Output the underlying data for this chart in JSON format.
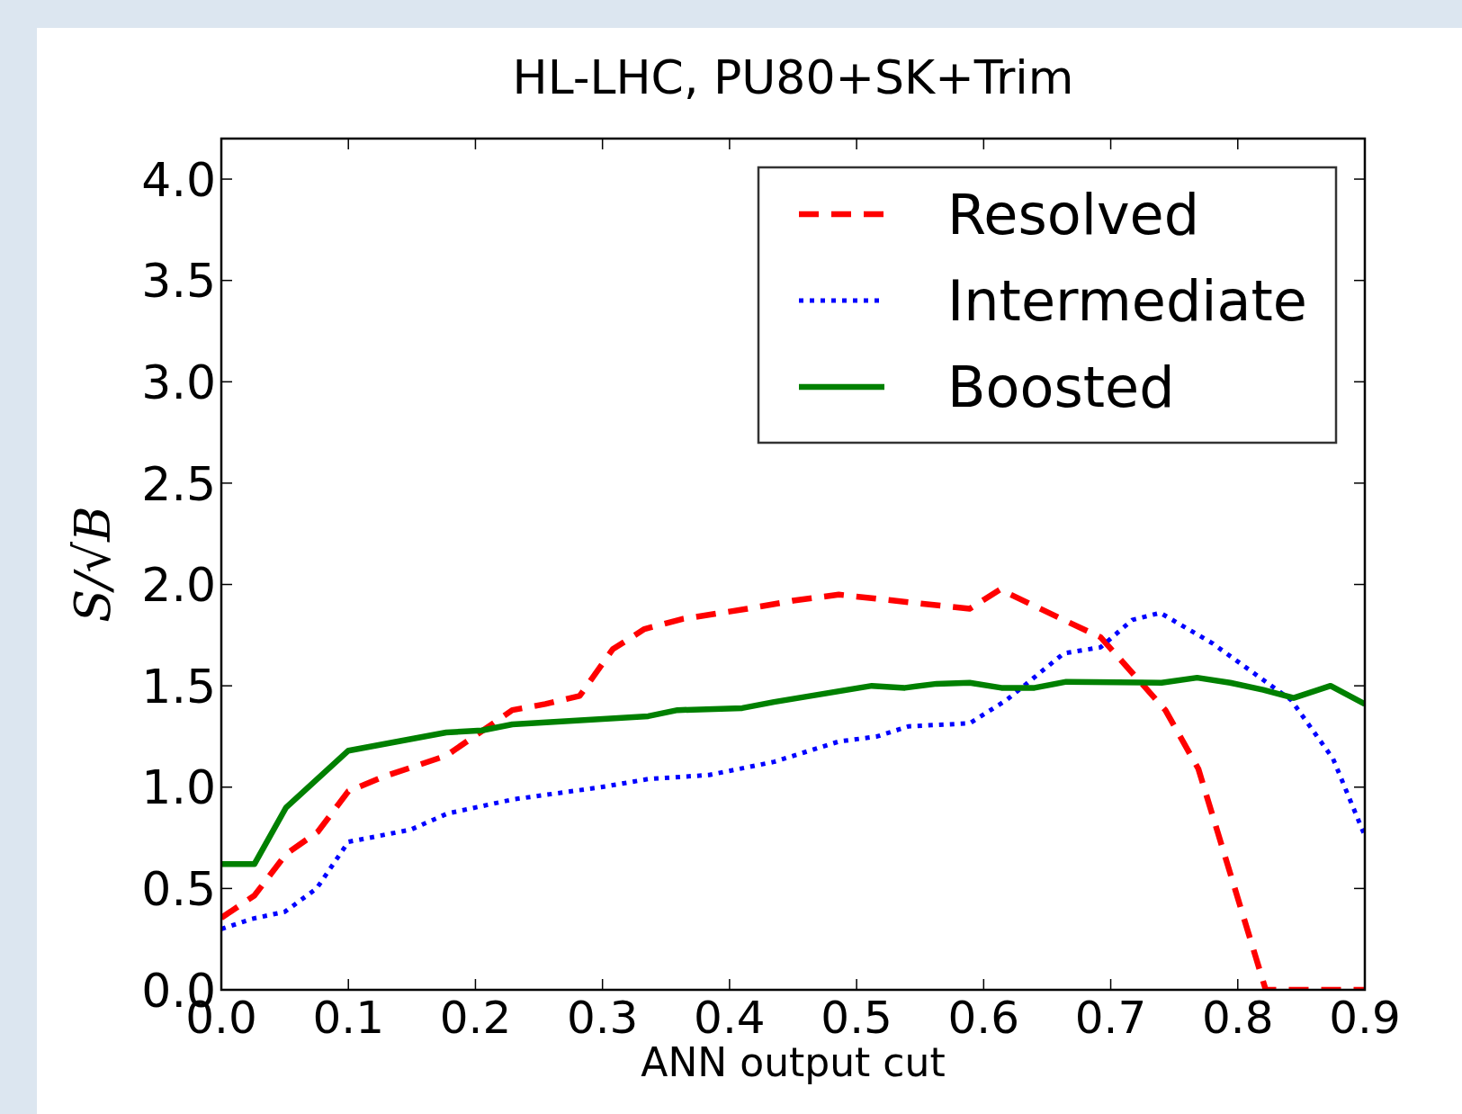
{
  "chart_data": {
    "type": "line",
    "title": "HL-LHC, PU80+SK+Trim",
    "xlabel": "ANN output cut",
    "ylabel": "S/√B",
    "xlim": [
      0,
      0.9
    ],
    "xticks": [
      {
        "value": 0,
        "label": "0.0"
      },
      0.1,
      0.2,
      0.3,
      0.4,
      0.5,
      0.6,
      0.7,
      0.8,
      0.9
    ],
    "ylim": [
      0,
      4.2
    ],
    "yticks": [
      {
        "value": 0,
        "label": "0.0"
      },
      0.5,
      {
        "value": 1,
        "label": "1.0"
      },
      1.5,
      {
        "value": 2,
        "label": "2.0"
      },
      2.5,
      {
        "value": 3,
        "label": "3.0"
      },
      3.5,
      {
        "value": 4,
        "label": "4.0"
      }
    ],
    "grid": false,
    "legend": "top right",
    "series": [
      {
        "name": "Resolved",
        "color": "#ff0000",
        "line_style": "dashed",
        "x": [
          0,
          0.026,
          0.051,
          0.076,
          0.1,
          0.127,
          0.177,
          0.229,
          0.255,
          0.282,
          0.308,
          0.333,
          0.363,
          0.414,
          0.45,
          0.486,
          0.589,
          0.613,
          0.663,
          0.692,
          0.743,
          0.769,
          0.822,
          0.9
        ],
        "values": [
          0.355,
          0.465,
          0.67,
          0.78,
          0.98,
          1.05,
          1.155,
          1.38,
          1.41,
          1.45,
          1.68,
          1.78,
          1.83,
          1.88,
          1.92,
          1.95,
          1.88,
          1.975,
          1.825,
          1.74,
          1.38,
          1.09,
          0,
          0
        ]
      },
      {
        "name": "Intermediate",
        "color": "#0000ff",
        "line_style": "dotted",
        "x": [
          0,
          0.024,
          0.05,
          0.075,
          0.1,
          0.149,
          0.178,
          0.23,
          0.299,
          0.336,
          0.384,
          0.435,
          0.486,
          0.516,
          0.541,
          0.589,
          0.618,
          0.663,
          0.692,
          0.717,
          0.739,
          0.78,
          0.842,
          0.875,
          0.9
        ],
        "values": [
          0.3,
          0.35,
          0.385,
          0.5,
          0.73,
          0.79,
          0.87,
          0.94,
          1.0,
          1.04,
          1.06,
          1.125,
          1.225,
          1.25,
          1.3,
          1.315,
          1.43,
          1.66,
          1.69,
          1.825,
          1.86,
          1.71,
          1.43,
          1.14,
          0.76
        ]
      },
      {
        "name": "Boosted",
        "color": "#008000",
        "line_style": "solid",
        "x": [
          0,
          0.026,
          0.051,
          0.1,
          0.177,
          0.205,
          0.229,
          0.336,
          0.359,
          0.41,
          0.435,
          0.512,
          0.538,
          0.563,
          0.589,
          0.614,
          0.64,
          0.665,
          0.74,
          0.768,
          0.794,
          0.82,
          0.844,
          0.873,
          0.9
        ],
        "values": [
          0.62,
          0.62,
          0.9,
          1.18,
          1.27,
          1.28,
          1.31,
          1.35,
          1.38,
          1.39,
          1.42,
          1.5,
          1.49,
          1.51,
          1.515,
          1.49,
          1.49,
          1.52,
          1.515,
          1.54,
          1.515,
          1.48,
          1.44,
          1.5,
          1.41
        ]
      }
    ]
  }
}
